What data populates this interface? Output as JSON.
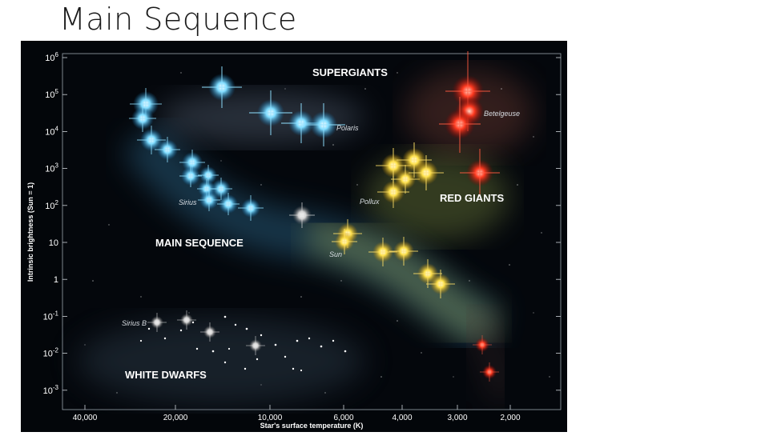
{
  "slide": {
    "title": "Main Sequence"
  },
  "diagram": {
    "y_axis_label": "Intrinsic brightness (Sun = 1)",
    "x_axis_label": "Star's surface temperature (K)",
    "y_ticks": [
      {
        "base": "10",
        "exp": "6"
      },
      {
        "base": "10",
        "exp": "5"
      },
      {
        "base": "10",
        "exp": "4"
      },
      {
        "base": "10",
        "exp": "3"
      },
      {
        "base": "10",
        "exp": "2"
      },
      {
        "base": "10",
        "exp": ""
      },
      {
        "base": "1",
        "exp": ""
      },
      {
        "base": "10",
        "exp": "-1"
      },
      {
        "base": "10",
        "exp": "-2"
      },
      {
        "base": "10",
        "exp": "-3"
      }
    ],
    "x_ticks": [
      "40,000",
      "20,000",
      "10,000",
      "6,000",
      "4,000",
      "3,000",
      "2,000"
    ],
    "regions": {
      "supergiants": "SUPERGIANTS",
      "red_giants": "RED GIANTS",
      "main_sequence": "MAIN SEQUENCE",
      "white_dwarfs": "WHITE DWARFS"
    },
    "star_labels": {
      "polaris": "Polaris",
      "betelgeuse": "Betelgeuse",
      "pollux": "Pollux",
      "sirius": "Sirius",
      "sun": "Sun",
      "sirius_b": "Sirius B"
    },
    "colors": {
      "blue": "#5fd0ff",
      "yellow": "#ffd21a",
      "red": "#ff2a1a",
      "white": "#d8d8d8",
      "background": "#03060a"
    }
  }
}
